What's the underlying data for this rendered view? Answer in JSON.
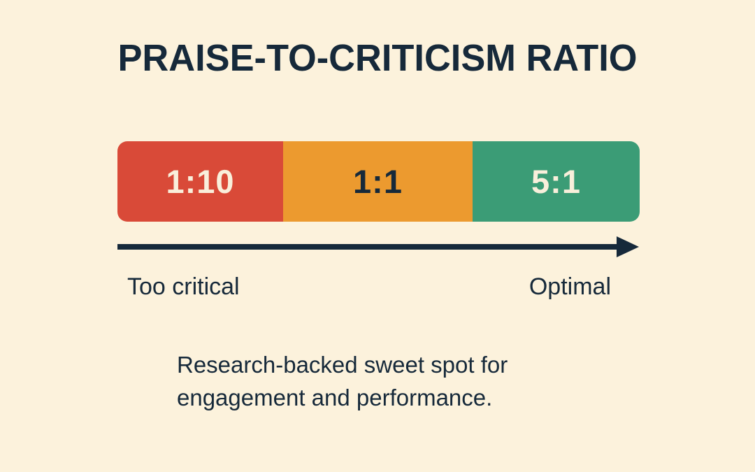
{
  "title": "PRAISE-TO-CRITICISM RATIO",
  "colors": {
    "background": "#FCF2DC",
    "ink": "#16293A",
    "cream_text": "#F9EFDB",
    "red": "#D94A38",
    "orange": "#EC9A2F",
    "green": "#3B9C76"
  },
  "scale": {
    "segments": [
      {
        "ratio": "1:10",
        "color": "#D94A38",
        "text_color": "#F9EFDB"
      },
      {
        "ratio": "1:1",
        "color": "#EC9A2F",
        "text_color": "#16293A"
      },
      {
        "ratio": "5:1",
        "color": "#3B9C76",
        "text_color": "#F9EFDB"
      }
    ]
  },
  "axis": {
    "left_label": "Too critical",
    "right_label": "Optimal"
  },
  "caption": {
    "line1": "Research-backed sweet spot for",
    "line2": "engagement and performance."
  }
}
